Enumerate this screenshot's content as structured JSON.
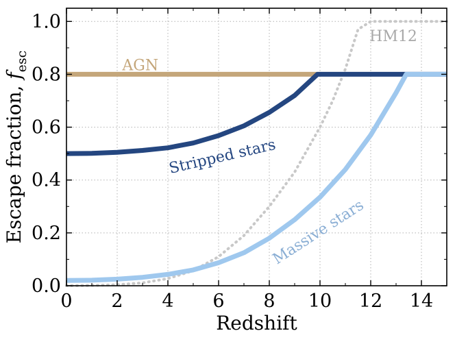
{
  "chart_data": {
    "type": "line",
    "xlabel": "Redshift",
    "ylabel_prefix": "Escape fraction, ",
    "ylabel_symbol": "f",
    "ylabel_subscript": "esc",
    "xlim": [
      0,
      15
    ],
    "ylim": [
      0,
      1.05
    ],
    "xticks": [
      0,
      2,
      4,
      6,
      8,
      10,
      12,
      14
    ],
    "yticks": [
      "0.0",
      "0.2",
      "0.4",
      "0.6",
      "0.8",
      "1.0"
    ],
    "grid": true,
    "series": [
      {
        "name": "AGN",
        "color": "#c4a67a",
        "x": [
          0,
          9.9
        ],
        "y": [
          0.8,
          0.8
        ]
      },
      {
        "name": "Stripped stars",
        "color": "#244680",
        "x": [
          0,
          1,
          2,
          3,
          4,
          5,
          6,
          7,
          8,
          9,
          9.9,
          15
        ],
        "y": [
          0.5,
          0.501,
          0.505,
          0.512,
          0.522,
          0.54,
          0.568,
          0.605,
          0.656,
          0.72,
          0.8,
          0.8
        ]
      },
      {
        "name": "Massive stars",
        "color": "#9fc8ee",
        "x": [
          0,
          1,
          2,
          3,
          4,
          5,
          6,
          7,
          8,
          9,
          10,
          11,
          12,
          13,
          13.4,
          15
        ],
        "y": [
          0.02,
          0.021,
          0.025,
          0.032,
          0.043,
          0.06,
          0.087,
          0.125,
          0.18,
          0.25,
          0.335,
          0.44,
          0.57,
          0.73,
          0.8,
          0.8
        ]
      },
      {
        "name": "HM12",
        "color": "#c8c8c8",
        "dotted": true,
        "x": [
          0,
          1,
          2,
          3,
          4,
          5,
          6,
          7,
          8,
          9,
          10,
          10.5,
          11,
          11.5,
          12,
          15
        ],
        "y": [
          0.0,
          0.001,
          0.004,
          0.011,
          0.027,
          0.057,
          0.11,
          0.19,
          0.3,
          0.43,
          0.6,
          0.7,
          0.82,
          0.97,
          1.0,
          1.0
        ]
      }
    ],
    "annotations": [
      {
        "text": "AGN",
        "color": "#c4a67a",
        "x": 2.2,
        "y": 0.815,
        "rotate": 0
      },
      {
        "text": "Stripped stars",
        "color": "#244680",
        "x": 4.1,
        "y": 0.425,
        "rotate": -13
      },
      {
        "text": "Massive stars",
        "color": "#8aaed4",
        "x": 8.3,
        "y": 0.08,
        "rotate": -33
      },
      {
        "text": "HM12",
        "color": "#a8a8a8",
        "x": 11.95,
        "y": 0.925,
        "rotate": 0
      }
    ]
  }
}
